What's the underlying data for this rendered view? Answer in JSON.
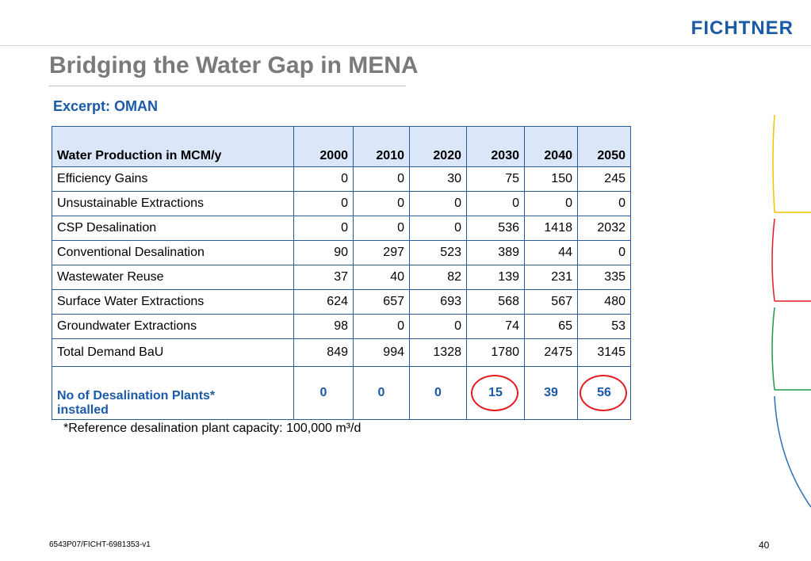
{
  "brand": {
    "logo_text": "FICHTNER",
    "color": "#1a5aa6"
  },
  "slide": {
    "title": "Bridging the Water Gap in MENA",
    "subtitle": "Excerpt: OMAN",
    "footnote": "*Reference desalination plant capacity: 100,000 m³/d",
    "doc_id": "6543P07/FICHT-6981353-v1",
    "page_number": "40"
  },
  "table": {
    "header": [
      "Water Production in MCM/y",
      "2000",
      "2010",
      "2020",
      "2030",
      "2040",
      "2050"
    ],
    "rows": [
      [
        "Efficiency Gains",
        "0",
        "0",
        "30",
        "75",
        "150",
        "245"
      ],
      [
        "Unsustainable Extractions",
        "0",
        "0",
        "0",
        "0",
        "0",
        "0"
      ],
      [
        "CSP Desalination",
        "0",
        "0",
        "0",
        "536",
        "1418",
        "2032"
      ],
      [
        "Conventional Desalination",
        "90",
        "297",
        "523",
        "389",
        "44",
        "0"
      ],
      [
        "Wastewater Reuse",
        "37",
        "40",
        "82",
        "139",
        "231",
        "335"
      ],
      [
        "Surface Water Extractions",
        "624",
        "657",
        "693",
        "568",
        "567",
        "480"
      ],
      [
        "Groundwater Extractions",
        "98",
        "0",
        "0",
        "74",
        "65",
        "53"
      ],
      [
        "Total Demand BaU",
        "849",
        "994",
        "1328",
        "1780",
        "2475",
        "3145"
      ]
    ],
    "plants_row": {
      "label": "No of Desalination Plants* installed",
      "values": [
        "0",
        "0",
        "0",
        "15",
        "39",
        "56"
      ],
      "circled_years": [
        "2030",
        "2050"
      ]
    },
    "colors": {
      "header_bg": "#dbe6f8",
      "border": "#2d5aa0",
      "highlight_text": "#1a5aa6",
      "circle": "#e31b23"
    }
  }
}
